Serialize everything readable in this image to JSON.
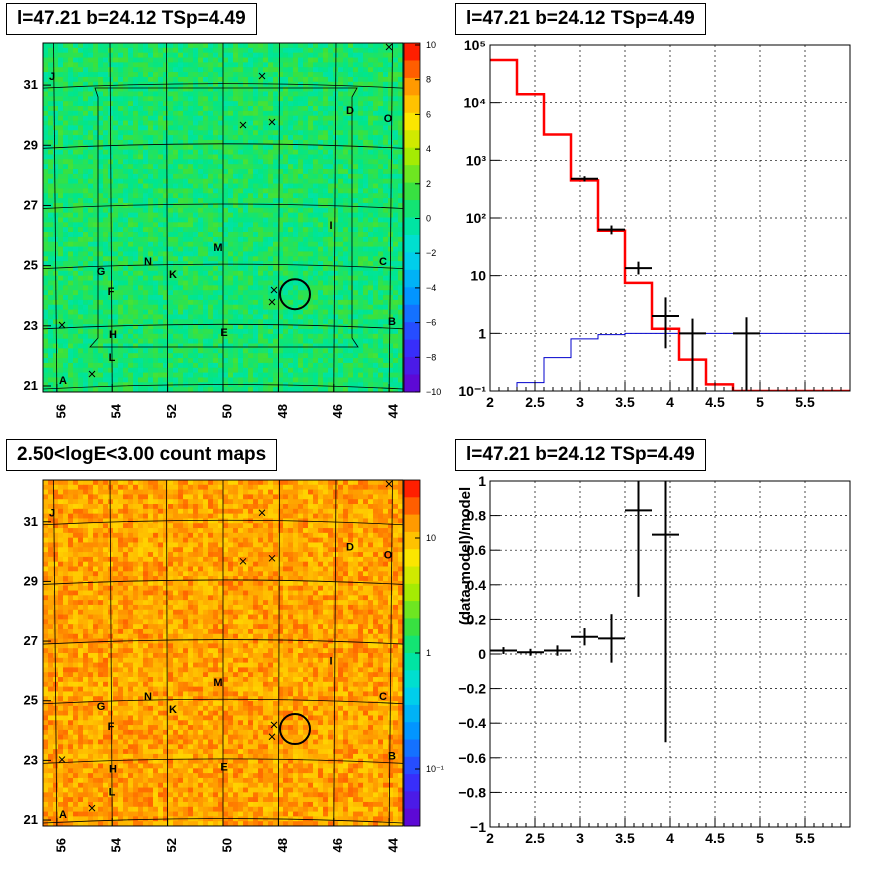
{
  "panels": {
    "map_top": {
      "title": "l=47.21 b=24.12 TSp=4.49",
      "x_ticks": [
        "56",
        "54",
        "52",
        "50",
        "48",
        "46",
        "44"
      ],
      "y_ticks": [
        "31",
        "29",
        "27",
        "25",
        "23",
        "21"
      ],
      "colorbar_ticks": [
        "10",
        "8",
        "6",
        "4",
        "2",
        "0",
        "−2",
        "−4",
        "−6",
        "−8",
        "−10"
      ],
      "source_letters": [
        "J",
        "D",
        "O",
        "I",
        "N",
        "M",
        "G",
        "K",
        "C",
        "F",
        "H",
        "E",
        "B",
        "L",
        "A"
      ]
    },
    "map_bottom": {
      "title": "2.50<logE<3.00 count maps",
      "x_ticks": [
        "56",
        "54",
        "52",
        "50",
        "48",
        "46",
        "44"
      ],
      "y_ticks": [
        "31",
        "29",
        "27",
        "25",
        "23",
        "21"
      ],
      "colorbar_ticks": [
        "10",
        "1",
        "10⁻¹"
      ],
      "source_letters": [
        "J",
        "D",
        "O",
        "I",
        "N",
        "M",
        "G",
        "K",
        "C",
        "F",
        "H",
        "E",
        "B",
        "L",
        "A"
      ]
    },
    "spectrum": {
      "title": "l=47.21 b=24.12 TSp=4.49",
      "x_ticks": [
        "2",
        "2.5",
        "3",
        "3.5",
        "4",
        "4.5",
        "5",
        "5.5"
      ],
      "y_ticks": [
        "10⁻¹",
        "1",
        "10",
        "10²",
        "10³",
        "10⁴",
        "10⁵"
      ]
    },
    "residual": {
      "title": "l=47.21 b=24.12 TSp=4.49",
      "ylabel": "(data-model)/model",
      "x_ticks": [
        "2",
        "2.5",
        "3",
        "3.5",
        "4",
        "4.5",
        "5",
        "5.5"
      ],
      "y_ticks": [
        "1",
        "0.8",
        "0.6",
        "0.4",
        "0.2",
        "0",
        "−0.2",
        "−0.4",
        "−0.6",
        "−0.8",
        "−1"
      ]
    }
  },
  "chart_data": [
    {
      "type": "heatmap",
      "title": "l=47.21 b=24.12 TSp=4.49",
      "xlim": [
        56.5,
        43.5
      ],
      "ylim": [
        20.8,
        32.4
      ],
      "zlim": [
        -10,
        10
      ],
      "palette": "rainbow",
      "circle_center": [
        47.4,
        24.05
      ]
    },
    {
      "type": "line",
      "title": "l=47.21 b=24.12 TSp=4.49",
      "xlim": [
        2,
        6
      ],
      "ylim": [
        0.1,
        100000
      ],
      "yscale": "log",
      "grid": true,
      "series": [
        {
          "style": "model-step-red",
          "edges": [
            2.0,
            2.3,
            2.6,
            2.9,
            3.2,
            3.5,
            3.8,
            4.1,
            4.4,
            4.7,
            5.0,
            6.0
          ],
          "values": [
            55000,
            14000,
            2800,
            450,
            60,
            7.5,
            1.2,
            0.35,
            0.13,
            0.1,
            0.1
          ]
        },
        {
          "style": "background-step-blue",
          "edges": [
            2.0,
            2.3,
            2.6,
            2.9,
            3.2,
            3.5,
            3.8,
            4.1,
            4.4,
            4.7,
            5.0,
            6.0
          ],
          "values": [
            0.1,
            0.14,
            0.38,
            0.8,
            0.95,
            1.0,
            1.0,
            1.0,
            1.0,
            1.0,
            1.0
          ]
        },
        {
          "style": "data-points",
          "x": [
            3.05,
            3.35,
            3.65,
            3.95,
            4.25,
            4.85
          ],
          "y": [
            480,
            63,
            13.5,
            2.0,
            1.0,
            1.0
          ],
          "xerr": [
            0.15,
            0.15,
            0.15,
            0.15,
            0.15,
            0.15
          ],
          "ylo": [
            430,
            52,
            10.5,
            0.55,
            0.1,
            0.1
          ],
          "yhi": [
            530,
            74,
            17.5,
            4.2,
            1.8,
            1.9
          ]
        }
      ]
    },
    {
      "type": "scatter",
      "title": "2.50<logE<3.00 count maps",
      "xlim": [
        56.5,
        43.5
      ],
      "ylim": [
        20.8,
        32.4
      ],
      "zscale": "log",
      "palette": "rainbow",
      "circle_center": [
        47.4,
        24.05
      ]
    },
    {
      "type": "scatter",
      "title": "l=47.21 b=24.12 TSp=4.49",
      "ylabel": "(data-model)/model",
      "xlim": [
        2,
        6
      ],
      "ylim": [
        -1,
        1
      ],
      "grid": true,
      "x": [
        2.15,
        2.45,
        2.75,
        3.05,
        3.35,
        3.65,
        3.95
      ],
      "y": [
        0.02,
        0.01,
        0.02,
        0.1,
        0.09,
        0.83,
        0.69
      ],
      "xerr": [
        0.15,
        0.15,
        0.15,
        0.15,
        0.15,
        0.15,
        0.15
      ],
      "yerr": [
        0.02,
        0.02,
        0.03,
        0.05,
        0.14,
        0.5,
        1.2
      ]
    }
  ]
}
